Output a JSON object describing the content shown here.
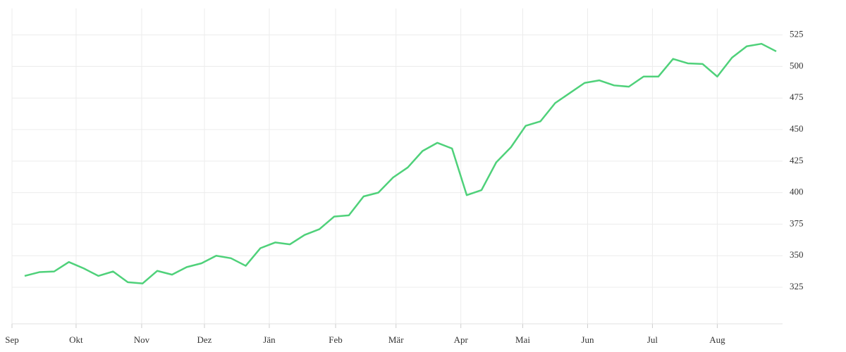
{
  "chart_data": {
    "type": "line",
    "x": [
      0,
      1,
      2,
      3,
      4,
      5,
      6,
      7,
      8,
      9,
      10,
      11,
      12,
      13,
      14,
      15,
      16,
      17,
      18,
      19,
      20,
      21,
      22,
      23,
      24,
      25,
      26,
      27,
      28,
      29,
      30,
      31,
      32,
      33,
      34,
      35,
      36,
      37,
      38,
      39,
      40,
      41,
      42,
      43,
      44,
      45,
      46,
      47,
      48,
      49,
      50,
      51
    ],
    "series": [
      {
        "color": "#4fd17a",
        "values": [
          334,
          337,
          337.5,
          345,
          340,
          334,
          337.5,
          329,
          328,
          338,
          335,
          341,
          344,
          350,
          348,
          342,
          356,
          360.5,
          359,
          366.5,
          371,
          381,
          382,
          397,
          400,
          412,
          420,
          433,
          439.5,
          435,
          398,
          402,
          424,
          436,
          453,
          456.5,
          471,
          479,
          487,
          489,
          485,
          484,
          492,
          492,
          506,
          502.5,
          502,
          492,
          507,
          516,
          518,
          512
        ]
      }
    ],
    "xlim": [
      -0.86,
      51.43
    ],
    "xticks": [
      {
        "value": -0.86,
        "label": "Sep"
      },
      {
        "value": 3.49,
        "label": "Okt"
      },
      {
        "value": 7.94,
        "label": "Nov"
      },
      {
        "value": 12.2,
        "label": "Dez"
      },
      {
        "value": 16.6,
        "label": "Jän"
      },
      {
        "value": 21.1,
        "label": "Feb"
      },
      {
        "value": 25.2,
        "label": "Mär"
      },
      {
        "value": 29.6,
        "label": "Apr"
      },
      {
        "value": 33.8,
        "label": "Mai"
      },
      {
        "value": 38.2,
        "label": "Jun"
      },
      {
        "value": 42.6,
        "label": "Jul"
      },
      {
        "value": 47.0,
        "label": "Aug"
      }
    ],
    "ylim": [
      296,
      546
    ],
    "yticks": [
      325,
      350,
      375,
      400,
      425,
      450,
      475,
      500,
      525
    ],
    "grid": true
  }
}
